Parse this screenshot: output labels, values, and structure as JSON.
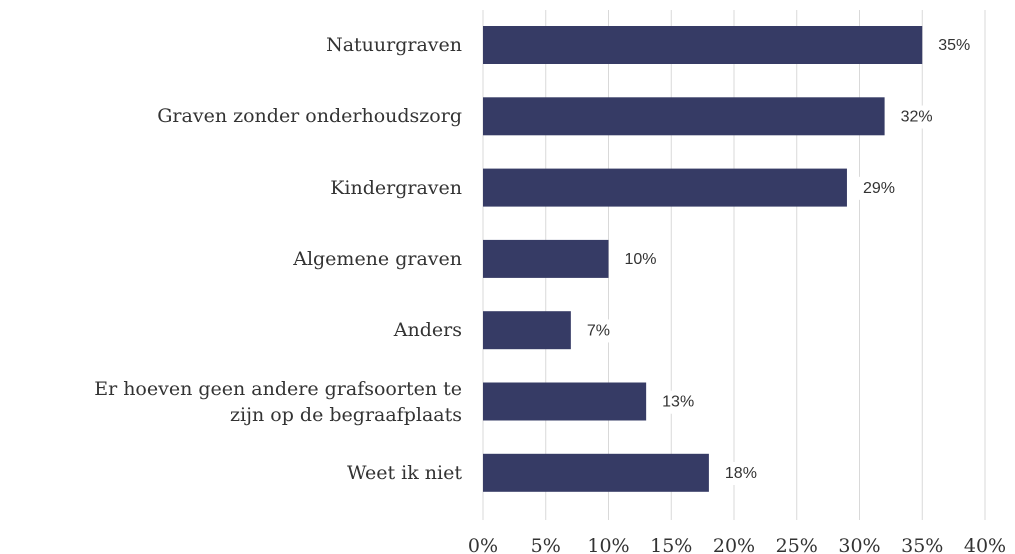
{
  "chart_data": {
    "type": "bar",
    "orientation": "horizontal",
    "categories": [
      "Natuurgraven",
      "Graven zonder onderhoudszorg",
      "Kindergraven",
      "Algemene graven",
      "Anders",
      "Er hoeven geen andere grafsoorten te\nzijn op de begraafplaats",
      "Weet ik niet"
    ],
    "values": [
      35,
      32,
      29,
      10,
      7,
      13,
      18
    ],
    "value_labels": [
      "35%",
      "32%",
      "29%",
      "10%",
      "7%",
      "13%",
      "18%"
    ],
    "color": "#363b65",
    "xlim": [
      0,
      40
    ],
    "xticks": [
      {
        "value": 0,
        "label": "0%"
      },
      {
        "value": 5,
        "label": "5%"
      },
      {
        "value": 10,
        "label": "10%"
      },
      {
        "value": 15,
        "label": "15%"
      },
      {
        "value": 20,
        "label": "20%"
      },
      {
        "value": 25,
        "label": "25%"
      },
      {
        "value": 30,
        "label": "30%"
      },
      {
        "value": 35,
        "label": "35%"
      },
      {
        "value": 40,
        "label": "40%"
      }
    ],
    "grid": true
  }
}
